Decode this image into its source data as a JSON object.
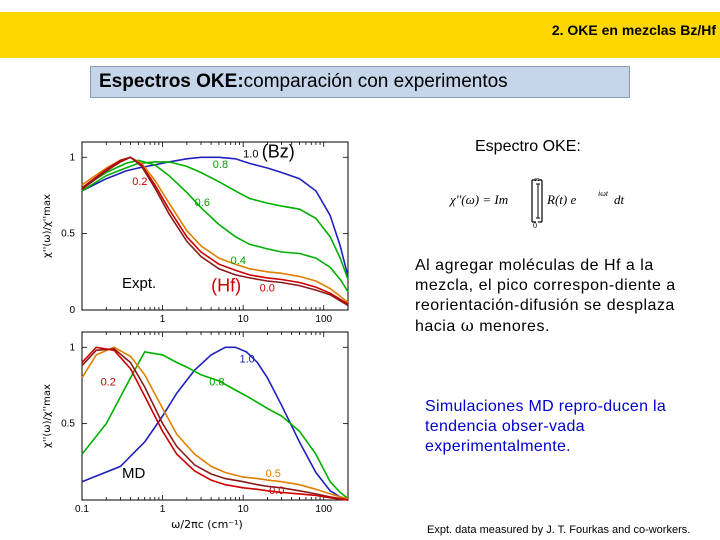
{
  "header": {
    "title": "2. OKE en mezclas Bz/Hf"
  },
  "slide_title": {
    "bold": "Espectros OKE:",
    "normal": "comparación con experimentos"
  },
  "right": {
    "oke_title": "Espectro OKE:",
    "formula": {
      "lhs": "χ''(ω) = Im",
      "integrand": "R(t) e",
      "exponent": "iωt",
      "dt": "dt",
      "upper": "∞",
      "lower": "0"
    },
    "paragraph1_before": "Al agregar moléculas de Hf a la mezcla, el pico correspon-diente a reorientación-difusión se desplaza hacia ",
    "paragraph1_symbol": "ω",
    "paragraph1_after": " menores.",
    "paragraph2": "Simulaciones MD repro-ducen la tendencia obser-vada experimentalmente.",
    "credit": "Expt. data measured by J. T. Fourkas and co-workers."
  },
  "chart_data": [
    {
      "type": "line",
      "panel_label": "Expt.",
      "ylabel": "χ''(ω)/χ''max",
      "xscale": "log",
      "xlim": [
        0.1,
        200
      ],
      "ylim": [
        0,
        1.1
      ],
      "xticks": [
        {
          "value": 1,
          "label": "1"
        },
        {
          "value": 10,
          "label": "10"
        },
        {
          "value": 100,
          "label": "100"
        }
      ],
      "yticks": [
        {
          "value": 0,
          "label": "0"
        },
        {
          "value": 0.5,
          "label": "0.5"
        },
        {
          "value": 1,
          "label": "1"
        }
      ],
      "annotations": [
        {
          "text": "1.0",
          "x": 10,
          "y": 1.0,
          "color": "#000000"
        },
        {
          "text": "(Bz)",
          "x": 17,
          "y": 1.0,
          "color": "#000000"
        },
        {
          "text": "0.8",
          "x": 4.2,
          "y": 0.93,
          "color": "#00a000"
        },
        {
          "text": "0.2",
          "x": 0.42,
          "y": 0.82,
          "color": "#cc0000"
        },
        {
          "text": "0.6",
          "x": 2.5,
          "y": 0.68,
          "color": "#00a000"
        },
        {
          "text": "0.4",
          "x": 7,
          "y": 0.3,
          "color": "#00a000"
        },
        {
          "text": "(Hf)",
          "x": 4,
          "y": 0.12,
          "color": "#cc0000"
        },
        {
          "text": "0.0",
          "x": 16,
          "y": 0.12,
          "color": "#cc0000"
        }
      ],
      "series": [
        {
          "color": "#2020c0",
          "x": [
            0.1,
            0.2,
            0.35,
            0.5,
            0.8,
            1.2,
            2,
            3,
            5,
            8,
            12,
            20,
            30,
            50,
            80,
            120,
            160,
            200
          ],
          "y": [
            0.78,
            0.86,
            0.91,
            0.93,
            0.95,
            0.97,
            0.99,
            1.0,
            1.0,
            0.99,
            0.96,
            0.93,
            0.9,
            0.86,
            0.78,
            0.62,
            0.42,
            0.22
          ]
        },
        {
          "color": "#00b000",
          "x": [
            0.1,
            0.2,
            0.35,
            0.5,
            0.8,
            1.2,
            2,
            3,
            5,
            8,
            12,
            20,
            30,
            50,
            80,
            120,
            160,
            200
          ],
          "y": [
            0.78,
            0.88,
            0.93,
            0.96,
            0.97,
            0.97,
            0.94,
            0.9,
            0.84,
            0.78,
            0.73,
            0.7,
            0.68,
            0.66,
            0.6,
            0.48,
            0.34,
            0.2
          ]
        },
        {
          "color": "#00b000",
          "x": [
            0.1,
            0.2,
            0.35,
            0.5,
            0.8,
            1.2,
            2,
            3,
            5,
            8,
            12,
            20,
            30,
            50,
            80,
            120,
            160,
            200
          ],
          "y": [
            0.8,
            0.9,
            0.96,
            0.98,
            0.95,
            0.88,
            0.77,
            0.67,
            0.56,
            0.48,
            0.43,
            0.4,
            0.38,
            0.37,
            0.34,
            0.28,
            0.2,
            0.12
          ]
        },
        {
          "color": "#e08000",
          "x": [
            0.1,
            0.2,
            0.3,
            0.4,
            0.55,
            0.8,
            1.2,
            2,
            3,
            5,
            8,
            12,
            20,
            30,
            50,
            80,
            120,
            160,
            200
          ],
          "y": [
            0.82,
            0.93,
            0.98,
            1.0,
            0.96,
            0.85,
            0.7,
            0.52,
            0.42,
            0.34,
            0.3,
            0.27,
            0.25,
            0.24,
            0.22,
            0.19,
            0.14,
            0.09,
            0.05
          ]
        },
        {
          "color": "#cc0000",
          "x": [
            0.1,
            0.2,
            0.3,
            0.4,
            0.55,
            0.8,
            1.2,
            2,
            3,
            5,
            8,
            12,
            20,
            30,
            50,
            80,
            120,
            160,
            200
          ],
          "y": [
            0.8,
            0.92,
            0.98,
            1.0,
            0.95,
            0.82,
            0.66,
            0.48,
            0.38,
            0.3,
            0.26,
            0.23,
            0.21,
            0.2,
            0.18,
            0.15,
            0.11,
            0.07,
            0.04
          ]
        },
        {
          "color": "#8b1a1a",
          "x": [
            0.1,
            0.2,
            0.3,
            0.4,
            0.55,
            0.8,
            1.2,
            2,
            3,
            5,
            8,
            12,
            20,
            30,
            50,
            80,
            120,
            160,
            200
          ],
          "y": [
            0.79,
            0.91,
            0.97,
            1.0,
            0.94,
            0.8,
            0.63,
            0.45,
            0.35,
            0.27,
            0.23,
            0.21,
            0.19,
            0.18,
            0.16,
            0.13,
            0.1,
            0.06,
            0.03
          ]
        }
      ]
    },
    {
      "type": "line",
      "panel_label": "MD",
      "ylabel": "χ''(ω)/χ''max",
      "xlabel": "ω/2πc (cm⁻¹)",
      "xscale": "log",
      "xlim": [
        0.1,
        200
      ],
      "ylim": [
        0,
        1.1
      ],
      "xticks": [
        {
          "value": 0.1,
          "label": "0.1"
        },
        {
          "value": 1,
          "label": "1"
        },
        {
          "value": 10,
          "label": "10"
        },
        {
          "value": 100,
          "label": "100"
        }
      ],
      "yticks": [
        {
          "value": 0.5,
          "label": "0.5"
        },
        {
          "value": 1,
          "label": "1"
        }
      ],
      "annotations": [
        {
          "text": "1.0",
          "x": 9,
          "y": 0.9,
          "color": "#2020c0"
        },
        {
          "text": "0.2",
          "x": 0.17,
          "y": 0.75,
          "color": "#cc0000"
        },
        {
          "text": "0.8",
          "x": 3.8,
          "y": 0.75,
          "color": "#00a000"
        },
        {
          "text": "0.5",
          "x": 19,
          "y": 0.15,
          "color": "#e08000"
        },
        {
          "text": "0.0",
          "x": 21,
          "y": 0.04,
          "color": "#cc0000"
        }
      ],
      "series": [
        {
          "color": "#2020c0",
          "x": [
            0.1,
            0.3,
            0.6,
            1,
            1.5,
            2.5,
            4,
            6,
            8,
            11,
            15,
            20,
            30,
            50,
            80,
            120,
            160,
            200
          ],
          "y": [
            0.12,
            0.22,
            0.38,
            0.55,
            0.7,
            0.85,
            0.95,
            1.0,
            1.0,
            0.97,
            0.9,
            0.8,
            0.62,
            0.38,
            0.18,
            0.06,
            0.02,
            0.0
          ]
        },
        {
          "color": "#00b000",
          "x": [
            0.1,
            0.2,
            0.4,
            0.6,
            1,
            1.5,
            2,
            3,
            5,
            8,
            12,
            20,
            30,
            50,
            80,
            120,
            160,
            200
          ],
          "y": [
            0.3,
            0.5,
            0.8,
            0.97,
            0.95,
            0.9,
            0.87,
            0.82,
            0.78,
            0.72,
            0.67,
            0.6,
            0.55,
            0.45,
            0.3,
            0.12,
            0.05,
            0.01
          ]
        },
        {
          "color": "#e08000",
          "x": [
            0.1,
            0.15,
            0.25,
            0.4,
            0.6,
            1,
            1.5,
            2.5,
            4,
            6,
            10,
            15,
            20,
            30,
            50,
            80,
            120,
            160,
            200
          ],
          "y": [
            0.8,
            0.95,
            1.0,
            0.94,
            0.82,
            0.6,
            0.43,
            0.3,
            0.22,
            0.18,
            0.15,
            0.14,
            0.13,
            0.12,
            0.1,
            0.07,
            0.04,
            0.02,
            0.01
          ]
        },
        {
          "color": "#8b1a1a",
          "x": [
            0.1,
            0.15,
            0.25,
            0.4,
            0.6,
            1,
            1.5,
            2.5,
            4,
            6,
            10,
            15,
            20,
            30,
            50,
            80,
            120,
            160,
            200
          ],
          "y": [
            0.88,
            0.98,
            0.99,
            0.9,
            0.74,
            0.5,
            0.35,
            0.23,
            0.17,
            0.14,
            0.12,
            0.1,
            0.09,
            0.08,
            0.06,
            0.04,
            0.02,
            0.01,
            0.0
          ]
        },
        {
          "color": "#cc0000",
          "x": [
            0.1,
            0.15,
            0.25,
            0.4,
            0.6,
            1,
            1.5,
            2.5,
            4,
            6,
            10,
            15,
            20,
            30,
            50,
            80,
            120,
            160,
            200
          ],
          "y": [
            0.9,
            1.0,
            0.98,
            0.86,
            0.68,
            0.45,
            0.3,
            0.19,
            0.13,
            0.1,
            0.08,
            0.07,
            0.06,
            0.05,
            0.04,
            0.03,
            0.015,
            0.005,
            0.0
          ]
        }
      ]
    }
  ]
}
